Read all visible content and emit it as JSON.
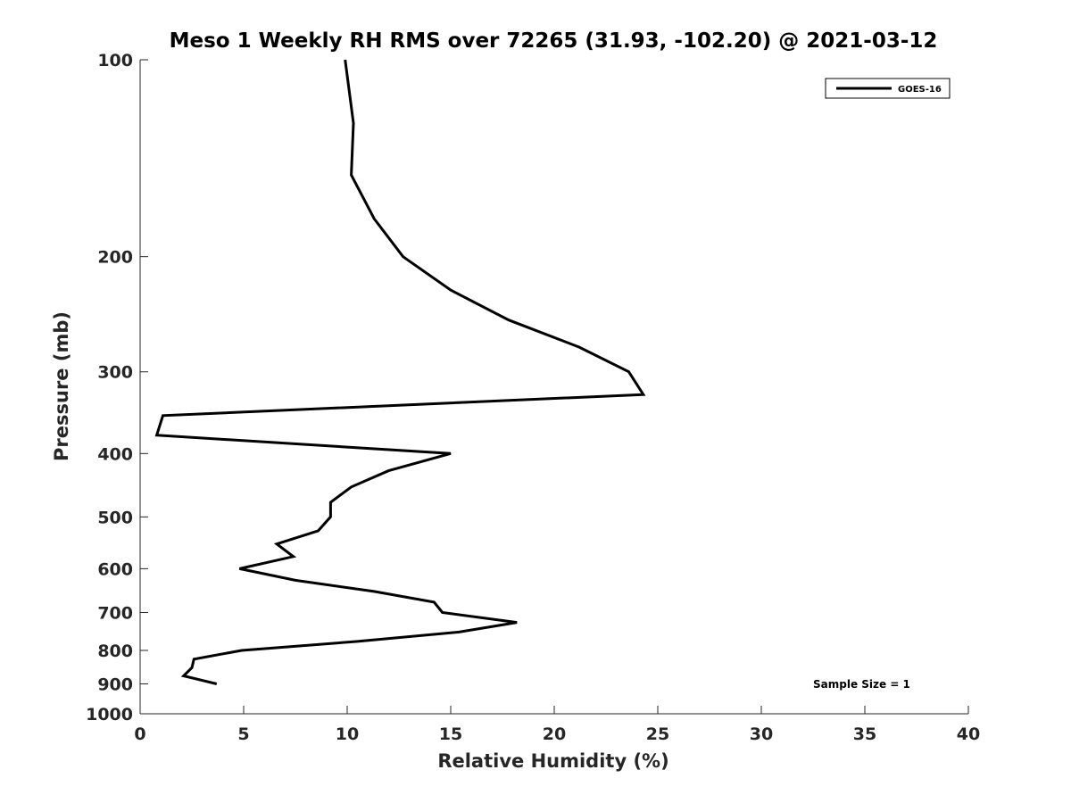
{
  "chart_data": {
    "type": "line",
    "title": "Meso 1 Weekly RH RMS over 72265 (31.93, -102.20) @ 2021-03-12",
    "xlabel": "Relative Humidity (%)",
    "ylabel": "Pressure (mb)",
    "xlim": [
      0,
      40
    ],
    "ylim": [
      1000,
      100
    ],
    "yscale": "log",
    "x_ticks": [
      0,
      5,
      10,
      15,
      20,
      25,
      30,
      35,
      40
    ],
    "y_ticks": [
      100,
      200,
      300,
      400,
      500,
      600,
      700,
      800,
      900,
      1000
    ],
    "grid": false,
    "legend_position": "top-right",
    "series": [
      {
        "name": "GOES-16",
        "color": "#000000",
        "points": [
          [
            9.9,
            100
          ],
          [
            10.3,
            125
          ],
          [
            10.2,
            150
          ],
          [
            11.3,
            175
          ],
          [
            12.7,
            200
          ],
          [
            15.0,
            225
          ],
          [
            17.8,
            250
          ],
          [
            21.2,
            275
          ],
          [
            23.6,
            300
          ],
          [
            24.3,
            325
          ],
          [
            1.1,
            350
          ],
          [
            0.8,
            375
          ],
          [
            15.0,
            400
          ],
          [
            12.0,
            425
          ],
          [
            10.2,
            450
          ],
          [
            9.2,
            475
          ],
          [
            9.2,
            500
          ],
          [
            8.6,
            525
          ],
          [
            6.6,
            550
          ],
          [
            7.4,
            575
          ],
          [
            4.8,
            600
          ],
          [
            7.5,
            625
          ],
          [
            11.3,
            650
          ],
          [
            14.2,
            675
          ],
          [
            14.6,
            700
          ],
          [
            18.2,
            725
          ],
          [
            15.4,
            750
          ],
          [
            10.5,
            775
          ],
          [
            4.9,
            800
          ],
          [
            2.6,
            825
          ],
          [
            2.5,
            850
          ],
          [
            2.1,
            875
          ],
          [
            3.7,
            900
          ]
        ]
      }
    ],
    "annotations": [
      {
        "text": "Sample Size = 1"
      }
    ]
  }
}
